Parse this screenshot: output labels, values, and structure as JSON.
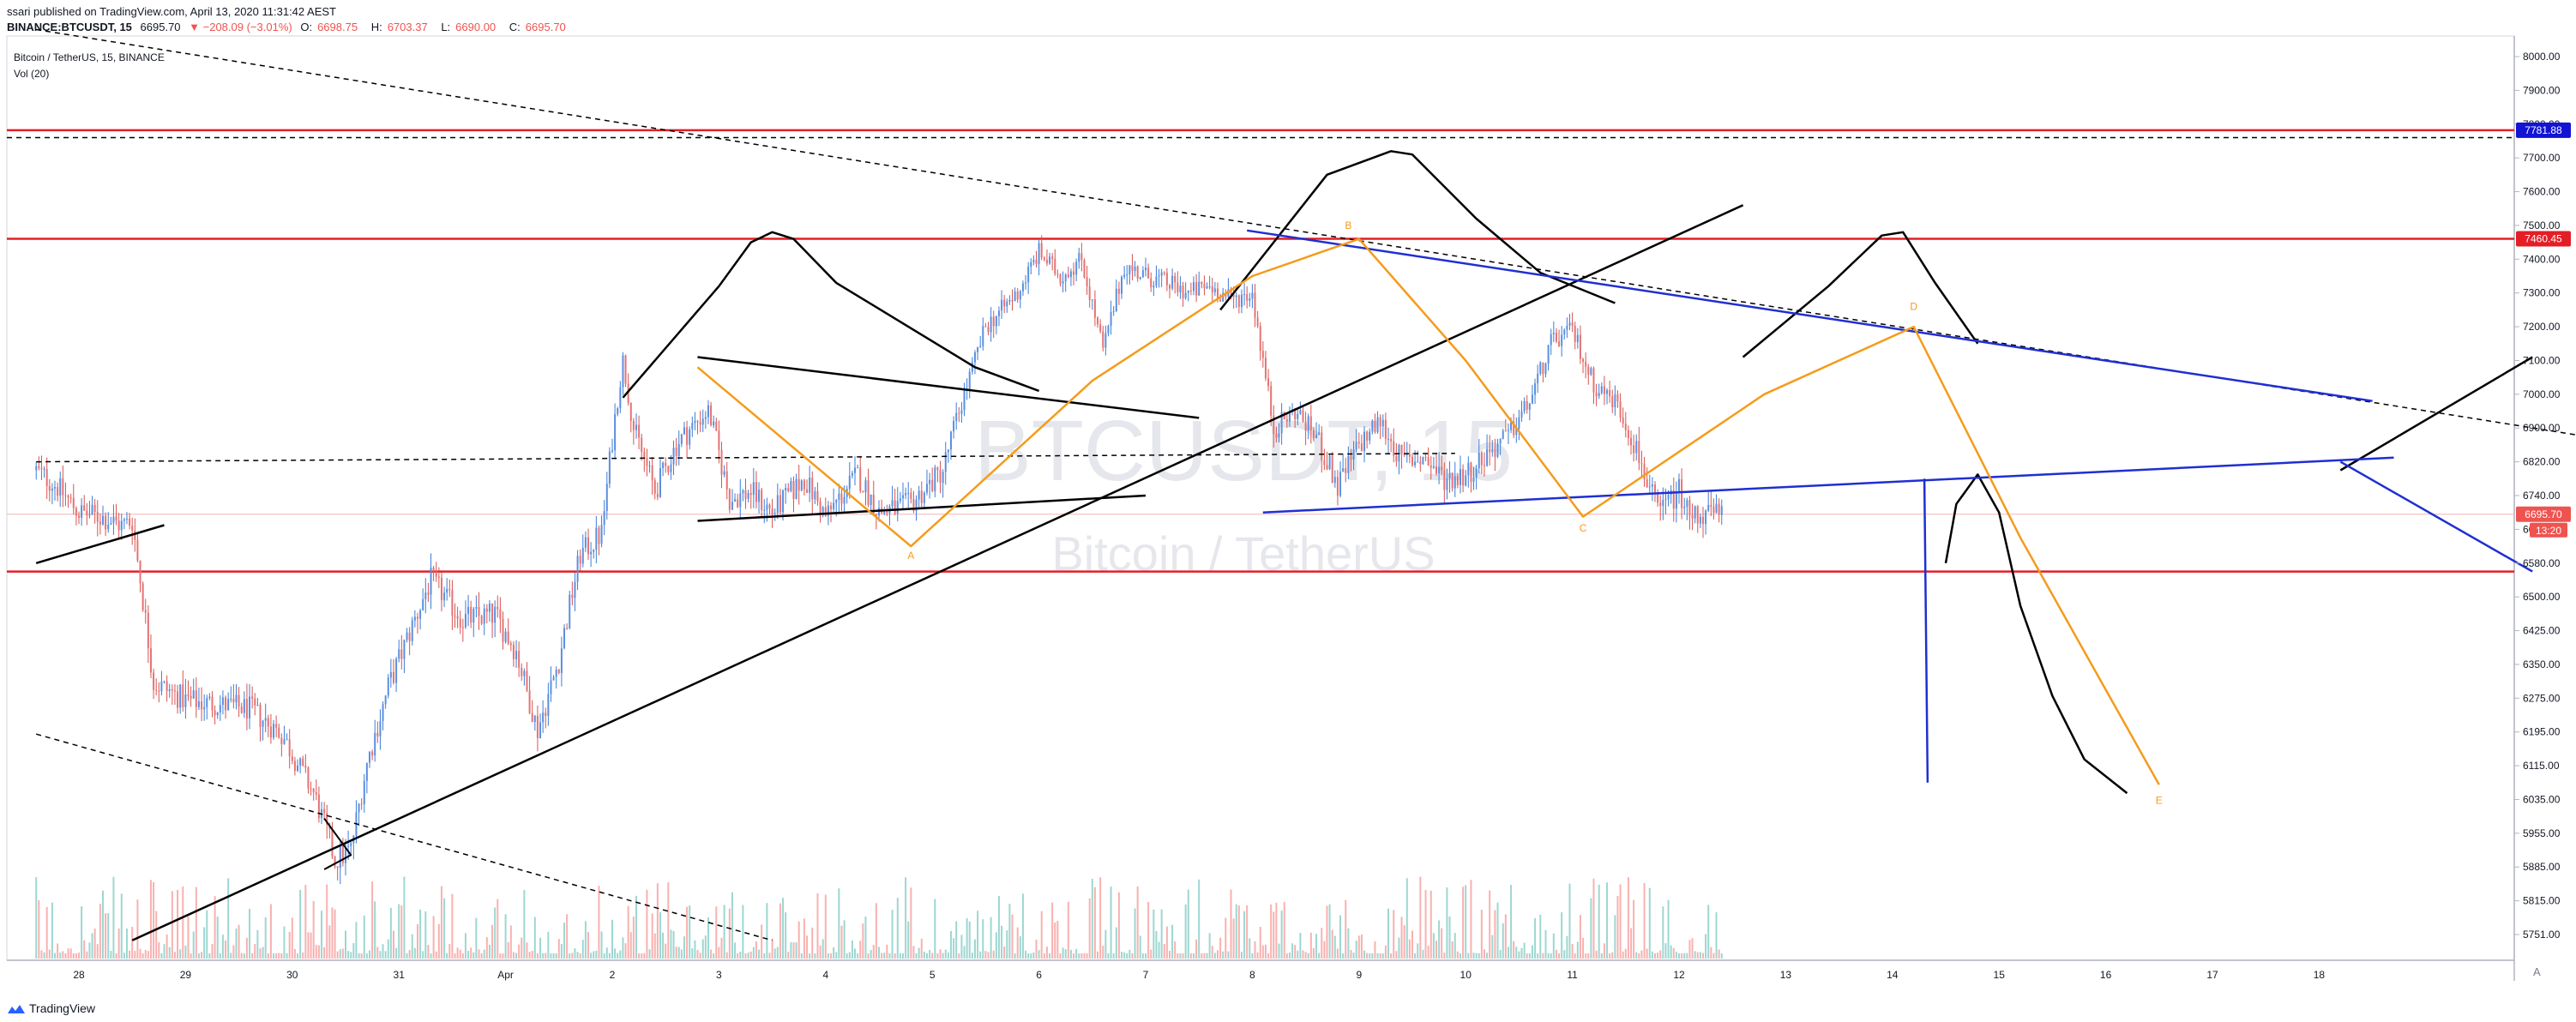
{
  "header": {
    "published_by": "ssari published on TradingView.com, April 13, 2020 11:31:42 AEST",
    "symbol": "BINANCE:BTCUSDT, 15",
    "last": "6695.70",
    "change": "▼ −208.09 (−3.01%)",
    "o_label": "O:",
    "o_value": "6698.75",
    "h_label": "H:",
    "h_value": "6703.37",
    "l_label": "L:",
    "l_value": "6690.00",
    "c_label": "C:",
    "c_value": "6695.70"
  },
  "legend": {
    "series_title": "Bitcoin / TetherUS, 15, BINANCE",
    "volume_title": "Vol (20)"
  },
  "watermark": {
    "symbol": "BTCUSDT, 15",
    "name": "Bitcoin / TetherUS"
  },
  "footer": {
    "logo_text": "TradingView",
    "auto_label": "A"
  },
  "colors": {
    "up": "#26a69a",
    "down": "#ef5350",
    "trendline_black": "#000000",
    "channel_blue": "#1f2fd1",
    "pattern_orange": "#f59b1b",
    "level_red": "#e41e26"
  },
  "chart_data": {
    "type": "line",
    "title": "Bitcoin / TetherUS, 15, BINANCE",
    "xlabel": "",
    "ylabel": "",
    "x_ticks": [
      "28",
      "29",
      "30",
      "31",
      "Apr",
      "2",
      "3",
      "4",
      "5",
      "6",
      "7",
      "8",
      "9",
      "10",
      "11",
      "12",
      "13",
      "14",
      "15",
      "16",
      "17",
      "18"
    ],
    "y_ticks": [
      8000,
      7900,
      7800,
      7700,
      7600,
      7500,
      7400,
      7300,
      7200,
      7100,
      7000,
      6900,
      6820,
      6740,
      6660,
      6580,
      6500,
      6425,
      6350,
      6275,
      6195,
      6115,
      6035,
      5955,
      5885,
      5815,
      5751
    ],
    "y_tick_labels": [
      "8000.00",
      "7900.00",
      "7800.00",
      "7700.00",
      "7600.00",
      "7500.00",
      "7400.00",
      "7300.00",
      "7200.00",
      "7100.00",
      "7000.00",
      "6900.00",
      "6820.00",
      "6740.00",
      "6660.00",
      "6580.00",
      "6500.00",
      "6425.00",
      "6350.00",
      "6275.00",
      "6195.00",
      "6115.00",
      "6035.00",
      "5955.00",
      "5885.00",
      "5815.00",
      "5751.00"
    ],
    "price_labels": [
      {
        "value": 7781.88,
        "text": "7781.88",
        "color": "#1313d4"
      },
      {
        "value": 7460.45,
        "text": "7460.45",
        "color": "#e41e26"
      },
      {
        "value": 6695.7,
        "text": "6695.70",
        "color": "#ef5350"
      }
    ],
    "countdown": "13:20",
    "horizontal_levels": [
      {
        "value": 7781.88,
        "color": "#e41e26",
        "style": "solid"
      },
      {
        "value": 7760,
        "color": "#000000",
        "style": "dashed"
      },
      {
        "value": 7460.45,
        "color": "#e41e26",
        "style": "solid"
      },
      {
        "value": 6560,
        "color": "#e41e26",
        "style": "solid"
      }
    ],
    "series": [
      {
        "x": [
          27.6,
          27.8,
          28.0,
          28.2,
          28.4,
          28.5,
          28.7,
          29.0,
          29.3,
          29.6,
          29.9,
          30.2,
          30.4,
          30.55,
          30.7,
          30.9,
          31.1,
          31.3,
          31.6,
          31.9,
          32.1,
          32.3,
          32.5,
          32.7,
          32.9,
          33.1,
          33.2,
          33.4,
          33.6,
          33.9,
          34.1,
          34.3,
          34.5,
          34.8,
          35.0,
          35.3,
          35.5,
          35.8,
          36.1,
          36.3,
          36.5,
          36.8,
          37.0,
          37.2,
          37.4,
          37.6,
          37.8,
          38.0,
          38.2,
          38.4,
          38.6,
          38.8,
          39.0,
          39.2,
          39.4,
          39.6,
          39.8,
          40.0,
          40.2,
          40.4,
          40.6,
          40.8,
          41.0,
          41.2,
          41.4,
          41.6,
          41.8,
          42.0,
          42.2,
          42.4,
          42.6,
          42.8,
          43.0,
          43.1,
          43.2,
          43.3,
          43.35,
          43.4
        ],
        "y": [
          6800,
          6760,
          6700,
          6690,
          6670,
          6680,
          6310,
          6270,
          6260,
          6250,
          6190,
          6050,
          5900,
          5920,
          6120,
          6300,
          6420,
          6540,
          6450,
          6460,
          6380,
          6200,
          6360,
          6600,
          6650,
          7100,
          6900,
          6750,
          6860,
          6950,
          6730,
          6750,
          6700,
          6780,
          6690,
          6790,
          6700,
          6720,
          6800,
          7000,
          7200,
          7300,
          7420,
          7350,
          7400,
          7130,
          7380,
          7350,
          7330,
          7300,
          7320,
          7280,
          7300,
          6900,
          6950,
          6880,
          6760,
          6860,
          6920,
          6820,
          6830,
          6780,
          6790,
          6840,
          6880,
          6980,
          7150,
          7190,
          7030,
          6980,
          6850,
          6700,
          6750,
          6690,
          6698,
          6695,
          6695,
          6695
        ]
      }
    ],
    "volume_title": "Vol (20)",
    "pattern_labels": [
      "A",
      "B",
      "C",
      "D",
      "E"
    ]
  }
}
